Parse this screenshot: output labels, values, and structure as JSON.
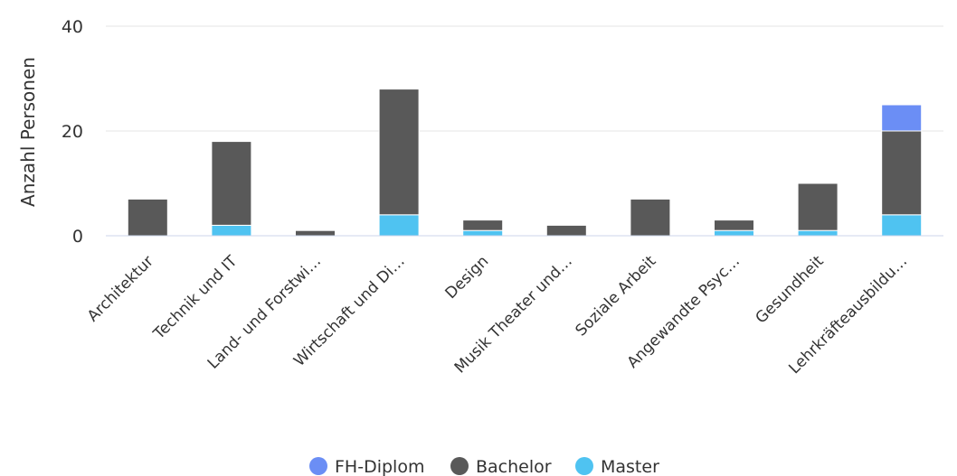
{
  "chart_data": {
    "type": "bar",
    "stacked": true,
    "ylabel": "Anzahl Personen",
    "ylim": [
      0,
      40
    ],
    "yticks": [
      0,
      20,
      40
    ],
    "grid": true,
    "legend_position": "bottom",
    "categories": [
      "Architektur",
      "Technik und IT",
      "Land- und Forstwi…",
      "Wirtschaft und Di…",
      "Design",
      "Musik Theater und…",
      "Soziale Arbeit",
      "Angewandte Psyc…",
      "Gesundheit",
      "Lehrkräfteausbildu…"
    ],
    "series": [
      {
        "name": "Master",
        "color": "#4fc3f1",
        "values": [
          0,
          2,
          0,
          4,
          1,
          0,
          0,
          1,
          1,
          4
        ]
      },
      {
        "name": "Bachelor",
        "color": "#595959",
        "values": [
          7,
          16,
          1,
          24,
          2,
          2,
          7,
          2,
          9,
          16
        ]
      },
      {
        "name": "FH-Diplom",
        "color": "#6b8ef5",
        "values": [
          0,
          0,
          0,
          0,
          0,
          0,
          0,
          0,
          0,
          5
        ]
      }
    ],
    "legend_order": [
      "FH-Diplom",
      "Bachelor",
      "Master"
    ]
  }
}
